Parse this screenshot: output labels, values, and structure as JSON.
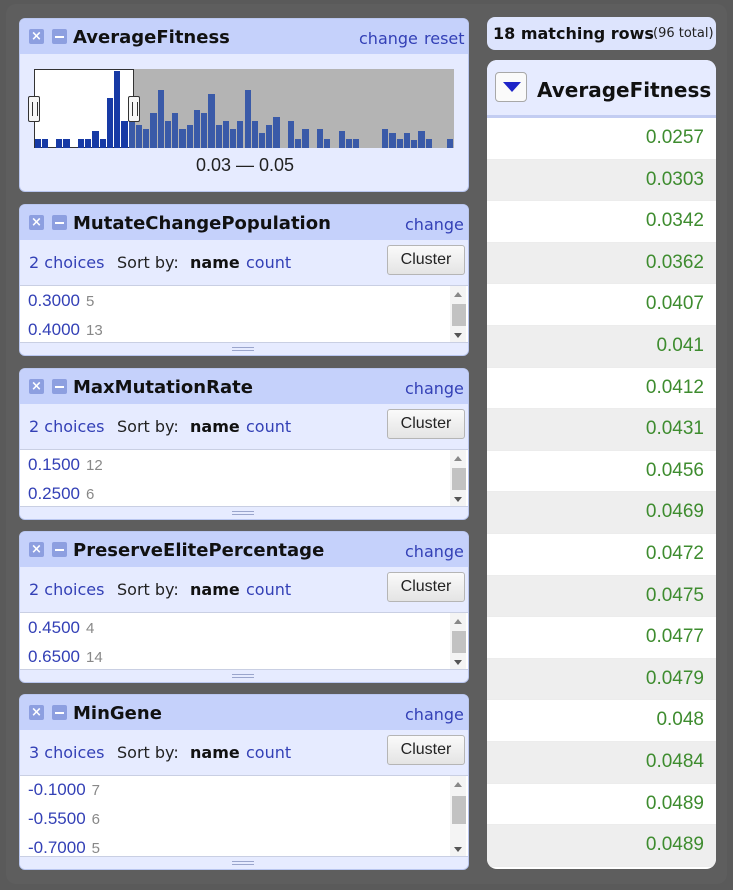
{
  "histogram_facet": {
    "title": "AverageFitness",
    "change_label": "change",
    "reset_label": "reset",
    "range_label": "0.03 — 0.05",
    "selected_fraction": [
      0,
      0.24
    ],
    "bars": [
      0.12,
      0.12,
      0.0,
      0.12,
      0.12,
      0.0,
      0.12,
      0.12,
      0.22,
      0.12,
      0.65,
      1.0,
      0.35,
      0.55,
      0.3,
      0.25,
      0.45,
      0.75,
      0.35,
      0.45,
      0.25,
      0.3,
      0.5,
      0.45,
      0.7,
      0.3,
      0.35,
      0.25,
      0.35,
      0.75,
      0.35,
      0.2,
      0.3,
      0.4,
      0.0,
      0.35,
      0.12,
      0.25,
      0.0,
      0.25,
      0.12,
      0.0,
      0.22,
      0.12,
      0.12,
      0.0,
      0.0,
      0.0,
      0.25,
      0.2,
      0.12,
      0.2,
      0.1,
      0.22,
      0.12,
      0.0,
      0.0,
      0.12
    ],
    "colors": {
      "bar": "#3a5aa8",
      "bar_selected": "#173aa5",
      "track": "#b4b4b4"
    }
  },
  "list_facets": [
    {
      "title": "MutateChangePopulation",
      "change_label": "change",
      "choices_label": "2 choices",
      "sort_by_label": "Sort by:",
      "sort_name_label": "name",
      "sort_count_label": "count",
      "cluster_label": "Cluster",
      "items": [
        {
          "value": "0.3000",
          "count": "5"
        },
        {
          "value": "0.4000",
          "count": "13"
        }
      ]
    },
    {
      "title": "MaxMutationRate",
      "change_label": "change",
      "choices_label": "2 choices",
      "sort_by_label": "Sort by:",
      "sort_name_label": "name",
      "sort_count_label": "count",
      "cluster_label": "Cluster",
      "items": [
        {
          "value": "0.1500",
          "count": "12"
        },
        {
          "value": "0.2500",
          "count": "6"
        }
      ]
    },
    {
      "title": "PreserveElitePercentage",
      "change_label": "change",
      "choices_label": "2 choices",
      "sort_by_label": "Sort by:",
      "sort_name_label": "name",
      "sort_count_label": "count",
      "cluster_label": "Cluster",
      "items": [
        {
          "value": "0.4500",
          "count": "4"
        },
        {
          "value": "0.6500",
          "count": "14"
        }
      ]
    },
    {
      "title": "MinGene",
      "change_label": "change",
      "choices_label": "3 choices",
      "sort_by_label": "Sort by:",
      "sort_name_label": "name",
      "sort_count_label": "count",
      "cluster_label": "Cluster",
      "items": [
        {
          "value": "-0.1000",
          "count": "7"
        },
        {
          "value": "-0.5500",
          "count": "6"
        },
        {
          "value": "-0.7000",
          "count": "5"
        }
      ]
    }
  ],
  "results": {
    "matching_label": "18 matching rows",
    "total_label": "(96 total)",
    "column_title": "AverageFitness",
    "sort_icon": "sort-descending-icon",
    "values": [
      "0.0257",
      "0.0303",
      "0.0342",
      "0.0362",
      "0.0407",
      "0.041",
      "0.0412",
      "0.0431",
      "0.0456",
      "0.0469",
      "0.0472",
      "0.0475",
      "0.0477",
      "0.0479",
      "0.048",
      "0.0484",
      "0.0489",
      "0.0489"
    ],
    "value_color": "#3e8c2f"
  },
  "colors": {
    "background": "#5e5e5e",
    "facet_header": "#c5d1fb",
    "facet_body": "#e6ebff",
    "link": "#3340b6"
  }
}
